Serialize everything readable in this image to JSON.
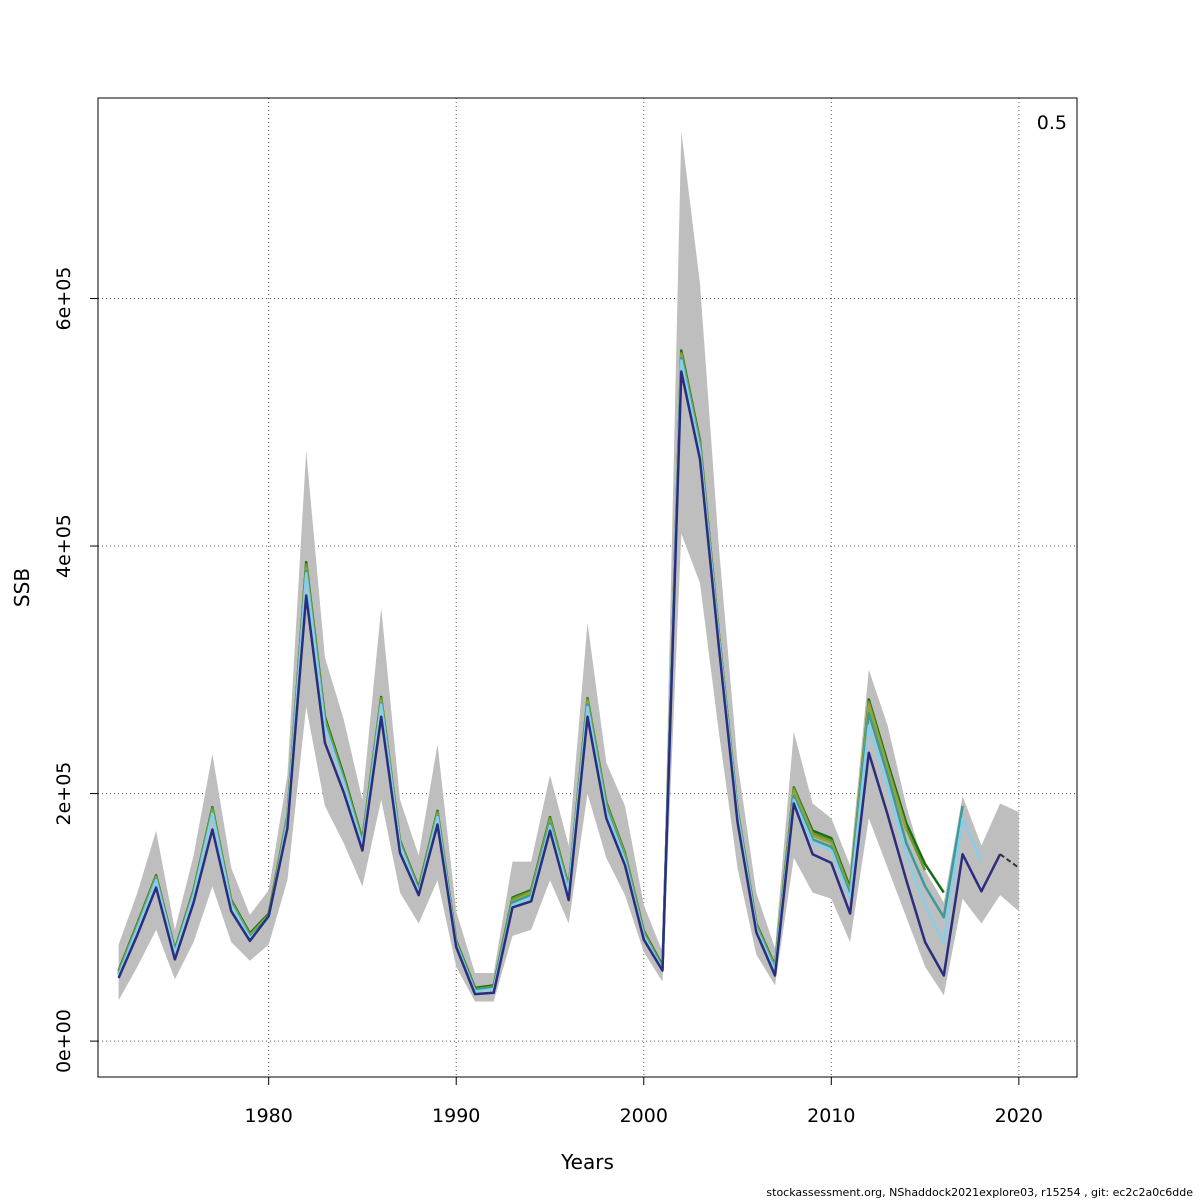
{
  "chart_data": {
    "type": "line",
    "xlabel": "Years",
    "ylabel": "SSB",
    "corner_label": "0.5",
    "footer": "stockassessment.org, NShaddock2021explore03, r15254 , git: ec2c2a0c6dde",
    "xlim": [
      1970.9,
      2023.1
    ],
    "ylim": [
      -29000,
      762000
    ],
    "x_ticks": [
      1980,
      1990,
      2000,
      2010,
      2020
    ],
    "x_tick_labels": [
      "1980",
      "1990",
      "2000",
      "2010",
      "2020"
    ],
    "y_ticks": [
      0,
      200000,
      400000,
      600000
    ],
    "y_tick_labels": [
      "0e+00",
      "2e+05",
      "4e+05",
      "6e+05"
    ],
    "grid": true,
    "band": {
      "color": "#bebebe",
      "x": [
        1972,
        1973,
        1974,
        1975,
        1976,
        1977,
        1978,
        1979,
        1980,
        1981,
        1982,
        1983,
        1984,
        1985,
        1986,
        1987,
        1988,
        1989,
        1990,
        1991,
        1992,
        1993,
        1994,
        1995,
        1996,
        1997,
        1998,
        1999,
        2000,
        2001,
        2002,
        2003,
        2004,
        2005,
        2006,
        2007,
        2008,
        2009,
        2010,
        2011,
        2012,
        2013,
        2014,
        2015,
        2016,
        2017,
        2018,
        2019,
        2020
      ],
      "lower": [
        33000,
        60000,
        90000,
        50000,
        80000,
        125000,
        80000,
        65000,
        78000,
        130000,
        270000,
        190000,
        160000,
        125000,
        195000,
        120000,
        95000,
        130000,
        60000,
        32000,
        32000,
        85000,
        90000,
        130000,
        95000,
        200000,
        148000,
        118000,
        72000,
        48000,
        410000,
        370000,
        250000,
        140000,
        70000,
        45000,
        148000,
        120000,
        115000,
        80000,
        180000,
        140000,
        100000,
        60000,
        37000,
        115000,
        95000,
        118000,
        105000
      ],
      "upper": [
        78000,
        120000,
        170000,
        90000,
        150000,
        232000,
        140000,
        102000,
        122000,
        215000,
        477000,
        310000,
        260000,
        195000,
        350000,
        195000,
        150000,
        240000,
        105000,
        55000,
        55000,
        145000,
        145000,
        215000,
        158000,
        338000,
        225000,
        190000,
        110000,
        72000,
        735000,
        612000,
        400000,
        225000,
        120000,
        75000,
        250000,
        192000,
        180000,
        142000,
        300000,
        255000,
        190000,
        138000,
        112000,
        198000,
        158000,
        192000,
        185000
      ]
    },
    "series": [
      {
        "color": "#1a6b1a",
        "x": [
          1972,
          1973,
          1974,
          1975,
          1976,
          1977,
          1978,
          1979,
          1980,
          1981,
          1982,
          1983,
          1984,
          1985,
          1986,
          1987,
          1988,
          1989,
          1990,
          1991,
          1992,
          1993,
          1994,
          1995,
          1996,
          1997,
          1998,
          1999,
          2000,
          2001,
          2002,
          2003,
          2004,
          2005,
          2006,
          2007,
          2008,
          2009,
          2010,
          2011,
          2012,
          2013,
          2014,
          2015,
          2016
        ],
        "y": [
          57000,
          95000,
          134000,
          74000,
          122000,
          189000,
          114000,
          87000,
          103000,
          182000,
          387000,
          262000,
          215000,
          163000,
          278000,
          162000,
          124000,
          186000,
          81000,
          43000,
          45000,
          116000,
          122000,
          181000,
          125000,
          277000,
          193000,
          152000,
          89000,
          61000,
          558000,
          485000,
          330000,
          187000,
          95000,
          61000,
          205000,
          170000,
          164000,
          124000,
          276000,
          225000,
          176000,
          143000,
          120000
        ]
      },
      {
        "color": "#6a9a2a",
        "x": [
          1972,
          1973,
          1974,
          1975,
          1976,
          1977,
          1978,
          1979,
          1980,
          1981,
          1982,
          1983,
          1984,
          1985,
          1986,
          1987,
          1988,
          1989,
          1990,
          1991,
          1992,
          1993,
          1994,
          1995,
          1996,
          1997,
          1998,
          1999,
          2000,
          2001,
          2002,
          2003,
          2004,
          2005,
          2006,
          2007,
          2008,
          2009,
          2010,
          2011,
          2012,
          2013,
          2014,
          2015
        ],
        "y": [
          56000,
          94000,
          133000,
          73000,
          121000,
          188000,
          113000,
          86000,
          102000,
          181000,
          385000,
          260000,
          213000,
          162000,
          277000,
          161000,
          123000,
          185000,
          80000,
          42000,
          44000,
          115000,
          121000,
          180000,
          124000,
          276000,
          192000,
          151000,
          88000,
          60000,
          556000,
          483000,
          329000,
          186000,
          94000,
          60000,
          204000,
          168000,
          162000,
          122000,
          274000,
          222000,
          172000,
          138000
        ]
      },
      {
        "color": "#9aa23a",
        "x": [
          1972,
          1973,
          1974,
          1975,
          1976,
          1977,
          1978,
          1979,
          1980,
          1981,
          1982,
          1983,
          1984,
          1985,
          1986,
          1987,
          1988,
          1989,
          1990,
          1991,
          1992,
          1993,
          1994,
          1995,
          1996,
          1997,
          1998,
          1999,
          2000,
          2001,
          2002,
          2003,
          2004,
          2005,
          2006,
          2007,
          2008,
          2009,
          2010,
          2011,
          2012,
          2013,
          2014
        ],
        "y": [
          55000,
          93000,
          132000,
          72000,
          120000,
          186000,
          112000,
          85000,
          101000,
          180000,
          382000,
          258000,
          211000,
          160000,
          275000,
          160000,
          122000,
          183000,
          79000,
          41000,
          43000,
          113000,
          120000,
          178000,
          123000,
          274000,
          190000,
          150000,
          87000,
          59000,
          554000,
          481000,
          328000,
          185000,
          93000,
          59000,
          202000,
          166000,
          160000,
          120000,
          272000,
          220000,
          170000
        ]
      },
      {
        "color": "#3a9c98",
        "x": [
          1972,
          1973,
          1974,
          1975,
          1976,
          1977,
          1978,
          1979,
          1980,
          1981,
          1982,
          1983,
          1984,
          1985,
          1986,
          1987,
          1988,
          1989,
          1990,
          1991,
          1992,
          1993,
          1994,
          1995,
          1996,
          1997,
          1998,
          1999,
          2000,
          2001,
          2002,
          2003,
          2004,
          2005,
          2006,
          2007,
          2008,
          2009,
          2010,
          2011,
          2012,
          2013,
          2014,
          2015,
          2016,
          2017
        ],
        "y": [
          54000,
          92000,
          131000,
          72000,
          119000,
          185000,
          111000,
          84000,
          100000,
          178000,
          380000,
          256000,
          210000,
          159000,
          273000,
          159000,
          121000,
          182000,
          79000,
          41000,
          43000,
          112000,
          118000,
          176000,
          122000,
          272000,
          188000,
          148000,
          86000,
          59000,
          552000,
          479000,
          326000,
          184000,
          92000,
          58000,
          198000,
          163000,
          157000,
          118000,
          265000,
          215000,
          160000,
          125000,
          100000,
          190000
        ]
      },
      {
        "color": "#87ceeb",
        "x": [
          1972,
          1973,
          1974,
          1975,
          1976,
          1977,
          1978,
          1979,
          1980,
          1981,
          1982,
          1983,
          1984,
          1985,
          1986,
          1987,
          1988,
          1989,
          1990,
          1991,
          1992,
          1993,
          1994,
          1995,
          1996,
          1997,
          1998,
          1999,
          2000,
          2001,
          2002,
          2003,
          2004,
          2005,
          2006,
          2007,
          2008,
          2009,
          2010,
          2011,
          2012,
          2013,
          2014,
          2015,
          2016,
          2017,
          2018
        ],
        "y": [
          53000,
          91000,
          130000,
          71000,
          118000,
          184000,
          110000,
          83000,
          99000,
          177000,
          378000,
          254000,
          209000,
          158000,
          272000,
          158000,
          120000,
          181000,
          78000,
          40000,
          42000,
          110000,
          116000,
          174000,
          121000,
          270000,
          186000,
          146000,
          85000,
          58000,
          550000,
          477000,
          325000,
          183000,
          91000,
          57000,
          195000,
          160000,
          154000,
          115000,
          255000,
          205000,
          150000,
          110000,
          80000,
          180000,
          145000
        ]
      },
      {
        "color": "#2b2d7e",
        "x": [
          1972,
          1973,
          1974,
          1975,
          1976,
          1977,
          1978,
          1979,
          1980,
          1981,
          1982,
          1983,
          1984,
          1985,
          1986,
          1987,
          1988,
          1989,
          1990,
          1991,
          1992,
          1993,
          1994,
          1995,
          1996,
          1997,
          1998,
          1999,
          2000,
          2001,
          2002,
          2003,
          2004,
          2005,
          2006,
          2007,
          2008,
          2009,
          2010,
          2011,
          2012,
          2013,
          2014,
          2015,
          2016,
          2017,
          2018,
          2019
        ],
        "y": [
          51000,
          86000,
          124000,
          66000,
          112000,
          171000,
          105000,
          81000,
          101000,
          172000,
          360000,
          241000,
          201000,
          154000,
          262000,
          152000,
          118000,
          175000,
          76000,
          38000,
          39000,
          108000,
          113000,
          170000,
          114000,
          262000,
          180000,
          142000,
          82000,
          57000,
          541000,
          470000,
          319000,
          177000,
          88000,
          53000,
          192000,
          151000,
          144000,
          103000,
          233000,
          183000,
          130000,
          80000,
          53000,
          151000,
          121000,
          151000
        ]
      },
      {
        "color": "#333333",
        "dashed": true,
        "x": [
          2019,
          2020
        ],
        "y": [
          151000,
          140000
        ]
      }
    ]
  }
}
